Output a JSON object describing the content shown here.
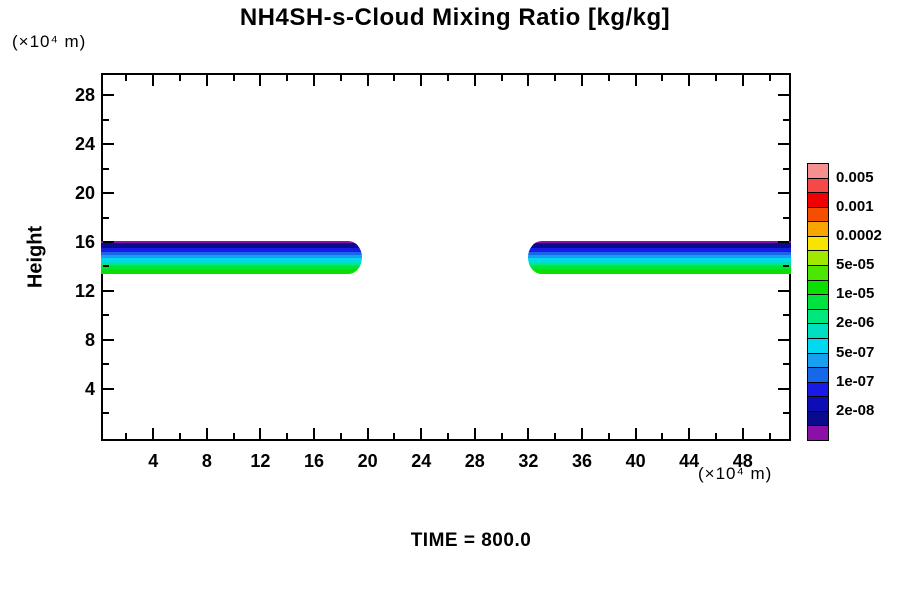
{
  "title": "NH4SH-s-Cloud Mixing Ratio [kg/kg]",
  "y_axis_unit": "(×10⁴ m)",
  "x_axis_unit": "(×10⁴ m)",
  "ylabel": "Height",
  "time_label": "TIME = 800.0",
  "chart_data": {
    "type": "heatmap",
    "title": "NH4SH-s-Cloud Mixing Ratio [kg/kg]",
    "xlabel": "(×10⁴ m)",
    "ylabel": "Height (×10⁴ m)",
    "time": 800.0,
    "grid": false,
    "legend_position": "right",
    "xlim": [
      0.1,
      51.6
    ],
    "ylim": [
      -0.25,
      29.8
    ],
    "x_major_ticks": [
      4,
      8,
      12,
      16,
      20,
      24,
      28,
      32,
      36,
      40,
      44,
      48
    ],
    "x_minor_ticks": [
      2,
      6,
      10,
      14,
      18,
      22,
      26,
      30,
      34,
      38,
      42,
      46,
      50
    ],
    "y_major_ticks": [
      4,
      8,
      12,
      16,
      20,
      24,
      28
    ],
    "y_minor_ticks": [
      2,
      6,
      10,
      14,
      18,
      22,
      26
    ],
    "colorbar": {
      "labels": [
        "0.005",
        "0.001",
        "0.0002",
        "5e-05",
        "1e-05",
        "2e-06",
        "5e-07",
        "1e-07",
        "2e-08"
      ],
      "colors": [
        "#F4908F",
        "#F54949",
        "#F00000",
        "#F54E00",
        "#F7A600",
        "#F7E400",
        "#A0E800",
        "#4CE600",
        "#0ADF00",
        "#00E33E",
        "#00E87D",
        "#00DFC0",
        "#00D9F0",
        "#18A0F0",
        "#1668E8",
        "#1A1AE8",
        "#0D0DB5",
        "#0A0A8C",
        "#8A10A8"
      ]
    },
    "bands": [
      {
        "name": "left-cloud-band",
        "x0": 0.1,
        "x1": 19.6,
        "y_top": 16.1,
        "y_bottom": 13.35,
        "cap": "right"
      },
      {
        "name": "right-cloud-band",
        "x0": 32.0,
        "x1": 51.6,
        "y_top": 16.1,
        "y_bottom": 13.35,
        "cap": "left"
      }
    ],
    "band_layers": [
      {
        "level": "2e-08",
        "color": "#8A10A8",
        "frac": 0.06
      },
      {
        "level": "5e-08",
        "color": "#0A0A8C",
        "frac": 0.15
      },
      {
        "level": "1e-07",
        "color": "#1A1AE8",
        "frac": 0.12
      },
      {
        "level": "2e-07",
        "color": "#1668E8",
        "frac": 0.09
      },
      {
        "level": "5e-07",
        "color": "#18A0F0",
        "frac": 0.09
      },
      {
        "level": "1e-06",
        "color": "#00D9F0",
        "frac": 0.09
      },
      {
        "level": "2e-06",
        "color": "#00DFC0",
        "frac": 0.06
      },
      {
        "level": "5e-06",
        "color": "#00E87D",
        "frac": 0.09
      },
      {
        "level": "1e-05",
        "color": "#00E33E",
        "frac": 0.1
      },
      {
        "level": "2e-05",
        "color": "#0ADF00",
        "frac": 0.15
      }
    ]
  }
}
